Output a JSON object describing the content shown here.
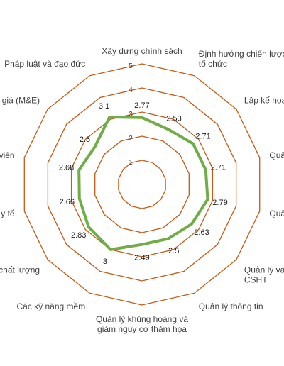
{
  "chart_data": {
    "type": "radar",
    "categories": [
      "Xây dựng chính sách",
      "Định hướng chiến lược, tổ chức",
      "Lập kế hoạch",
      "Quản",
      "Quản",
      "Quản lý và sử CSHT",
      "Quản lý thông tin",
      "Quản lý khủng hoảng và giảm nguy cơ thảm họa",
      "Các kỹ năng mềm",
      "chất lượng",
      "a y tế",
      "n viên",
      "nh giá (M&E)",
      "Pháp luật và đạo đức"
    ],
    "label_lines": [
      [
        "Xây dựng chính sách"
      ],
      [
        "Định hướng chiến lược,",
        "tổ chức"
      ],
      [
        "Lập kế hoạch"
      ],
      [
        "Quản"
      ],
      [
        "Quản"
      ],
      [
        "Quản lý và sử",
        "CSHT"
      ],
      [
        "Quản lý thông tin"
      ],
      [
        "Quản lý khủng hoảng và",
        "giảm nguy cơ thảm họa"
      ],
      [
        "Các kỹ năng mềm"
      ],
      [
        "chất lượng"
      ],
      [
        "a y tế"
      ],
      [
        "n viên"
      ],
      [
        "nh giá (M&E)"
      ],
      [
        "Pháp luật và đạo đức"
      ]
    ],
    "series": [
      {
        "values": [
          2.77,
          2.53,
          2.71,
          2.71,
          2.79,
          2.63,
          2.5,
          2.49,
          3,
          2.83,
          2.66,
          2.68,
          2.5,
          3.1
        ],
        "value_labels": [
          "2.77",
          "2.53",
          "2.71",
          "2.71",
          "2.79",
          "2.63",
          "2.5",
          "2.49",
          "3",
          "2.83",
          "2.66",
          "2.68",
          "2.5",
          "3.1"
        ]
      }
    ],
    "rlim": [
      0,
      5
    ],
    "ticks": [
      "1",
      "2",
      "3",
      "4",
      "5"
    ],
    "grid": true,
    "colors": {
      "series": "#70ad47",
      "grid": "#c55a11",
      "text": "#404040"
    }
  }
}
